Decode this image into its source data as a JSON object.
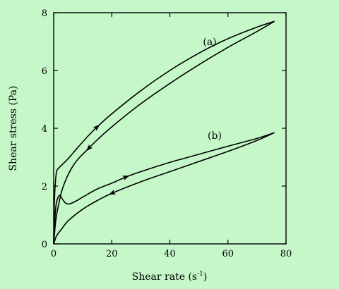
{
  "chart_data": {
    "type": "line",
    "title": "",
    "xlabel": "Shear rate",
    "xlabel_unit": "(s",
    "xlabel_unit_exp": "-1",
    "xlabel_unit_close": ")",
    "ylabel": "Shear stress (Pa)",
    "xlim": [
      0,
      80
    ],
    "ylim": [
      0,
      8
    ],
    "xticks": [
      0,
      20,
      40,
      60,
      80
    ],
    "yticks": [
      0,
      2,
      4,
      6,
      8
    ],
    "grid": false,
    "curve_labels": [
      "(a)",
      "(b)"
    ],
    "series": [
      {
        "label": "(a)",
        "branch": "up",
        "x": [
          0,
          0.2,
          0.5,
          1,
          2,
          3,
          5,
          8,
          12,
          15,
          20,
          30,
          40,
          50,
          60,
          70,
          76
        ],
        "y": [
          0,
          1.3,
          2.0,
          2.5,
          2.65,
          2.75,
          2.95,
          3.3,
          3.75,
          4.05,
          4.5,
          5.3,
          6.0,
          6.6,
          7.1,
          7.5,
          7.7
        ]
      },
      {
        "label": "(a)",
        "branch": "down",
        "x": [
          76,
          70,
          60,
          50,
          40,
          30,
          20,
          15,
          12,
          9,
          7,
          5,
          3,
          2,
          1,
          0.5,
          0
        ],
        "y": [
          7.7,
          7.35,
          6.8,
          6.2,
          5.55,
          4.85,
          4.05,
          3.6,
          3.3,
          3.0,
          2.75,
          2.4,
          1.9,
          1.5,
          1.0,
          0.6,
          0
        ]
      },
      {
        "label": "(b)",
        "branch": "up",
        "x": [
          0,
          0.5,
          1,
          2,
          3,
          4,
          5,
          6,
          8,
          10,
          15,
          20,
          25,
          30,
          40,
          50,
          60,
          70,
          76
        ],
        "y": [
          0,
          1.0,
          1.45,
          1.68,
          1.55,
          1.42,
          1.38,
          1.4,
          1.5,
          1.62,
          1.9,
          2.1,
          2.32,
          2.5,
          2.82,
          3.1,
          3.38,
          3.65,
          3.85
        ]
      },
      {
        "label": "(b)",
        "branch": "down",
        "x": [
          76,
          70,
          60,
          50,
          40,
          30,
          20,
          15,
          10,
          5,
          3,
          2,
          1,
          0.5,
          0
        ],
        "y": [
          3.85,
          3.58,
          3.2,
          2.85,
          2.5,
          2.15,
          1.75,
          1.5,
          1.2,
          0.8,
          0.55,
          0.42,
          0.28,
          0.15,
          0
        ]
      }
    ],
    "arrows": [
      {
        "series_index": 0,
        "x": 15,
        "y": 4.05,
        "direction": "up"
      },
      {
        "series_index": 1,
        "x": 12,
        "y": 3.3,
        "direction": "down"
      },
      {
        "series_index": 2,
        "x": 25,
        "y": 2.32,
        "direction": "up"
      },
      {
        "series_index": 3,
        "x": 20,
        "y": 1.75,
        "direction": "down"
      }
    ],
    "colors": {
      "background": "#c6f7c9",
      "line": "#000000"
    }
  }
}
